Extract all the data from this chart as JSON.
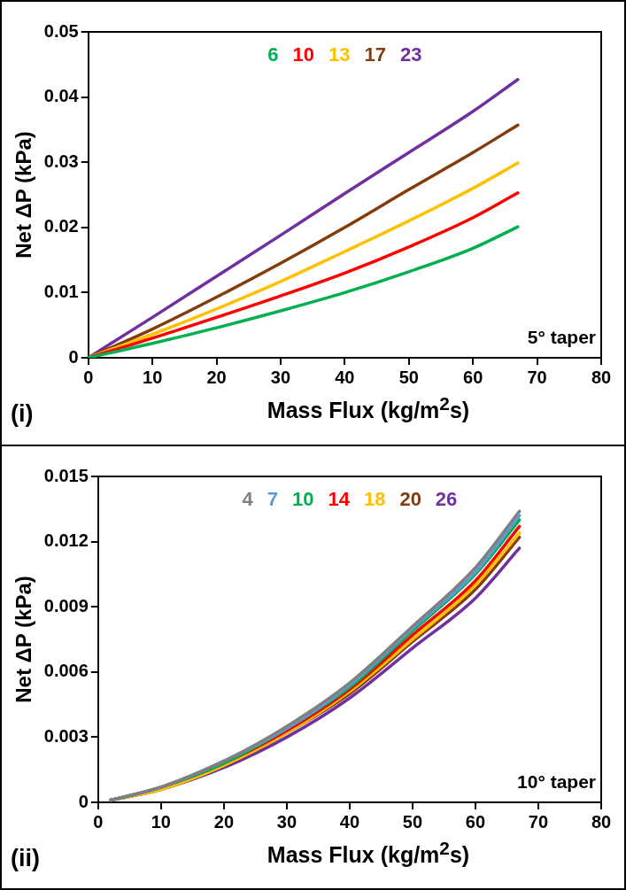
{
  "chart_data": [
    {
      "type": "line",
      "xlabel": "Mass Flux (kg/m$^{2}$s)",
      "ylabel": "Net ΔP (kPa)",
      "annotations": [
        "(i)",
        "5° taper"
      ],
      "xlim": [
        0,
        80
      ],
      "xticks": [
        0,
        10,
        20,
        30,
        40,
        50,
        60,
        70,
        80
      ],
      "ylim": [
        0,
        0.05
      ],
      "yticks": [
        0,
        0.01,
        0.02,
        0.03,
        0.04,
        0.05
      ],
      "grid": false,
      "legend": "top",
      "marker": "none",
      "line_style": "solid",
      "x": [
        0,
        10,
        20,
        30,
        40,
        50,
        60,
        67
      ],
      "series": [
        {
          "name": "6",
          "color": "#00b050",
          "values": [
            0,
            0.0022,
            0.0046,
            0.0072,
            0.01,
            0.0132,
            0.0168,
            0.0201
          ]
        },
        {
          "name": "10",
          "color": "#ff0000",
          "values": [
            0,
            0.003,
            0.0062,
            0.0095,
            0.013,
            0.017,
            0.0215,
            0.0253
          ]
        },
        {
          "name": "13",
          "color": "#ffc000",
          "values": [
            0,
            0.0036,
            0.0075,
            0.0117,
            0.0163,
            0.021,
            0.026,
            0.0299
          ]
        },
        {
          "name": "17",
          "color": "#843c0c",
          "values": [
            0,
            0.0044,
            0.0093,
            0.0145,
            0.02,
            0.0258,
            0.0315,
            0.0357
          ]
        },
        {
          "name": "23",
          "color": "#7030a0",
          "values": [
            0,
            0.0062,
            0.0125,
            0.0188,
            0.0252,
            0.0315,
            0.0378,
            0.0427
          ]
        }
      ]
    },
    {
      "type": "line",
      "xlabel": "Mass Flux (kg/m$^{2}$s)",
      "ylabel": "Net ΔP (kPa)",
      "annotations": [
        "(ii)",
        "10° taper"
      ],
      "xlim": [
        0,
        80
      ],
      "xticks": [
        0,
        10,
        20,
        30,
        40,
        50,
        60,
        70,
        80
      ],
      "ylim": [
        0,
        0.015
      ],
      "yticks": [
        0,
        0.003,
        0.006,
        0.009,
        0.012,
        0.015
      ],
      "grid": false,
      "legend": "top",
      "marker": "none",
      "line_style": "solid",
      "x": [
        2,
        10,
        20,
        30,
        40,
        50,
        60,
        67
      ],
      "series": [
        {
          "name": "4",
          "color": "#808080",
          "values": [
            0.0001,
            0.0007,
            0.0019,
            0.0035,
            0.0055,
            0.0081,
            0.0108,
            0.0134
          ]
        },
        {
          "name": "7",
          "color": "#5b9bd5",
          "values": [
            0.0001,
            0.0007,
            0.0019,
            0.0034,
            0.0054,
            0.008,
            0.0106,
            0.0132
          ]
        },
        {
          "name": "10",
          "color": "#00b050",
          "values": [
            0.0001,
            0.0007,
            0.0018,
            0.0034,
            0.0053,
            0.0079,
            0.0105,
            0.013
          ]
        },
        {
          "name": "14",
          "color": "#ff0000",
          "values": [
            0.0001,
            0.0007,
            0.0018,
            0.0033,
            0.0052,
            0.0077,
            0.0102,
            0.0127
          ]
        },
        {
          "name": "18",
          "color": "#ffc000",
          "values": [
            0.0001,
            0.0006,
            0.0017,
            0.0032,
            0.0051,
            0.0075,
            0.01,
            0.0124
          ]
        },
        {
          "name": "20",
          "color": "#843c0c",
          "values": [
            0.0001,
            0.0006,
            0.0017,
            0.0032,
            0.005,
            0.0074,
            0.0098,
            0.0122
          ]
        },
        {
          "name": "26",
          "color": "#7030a0",
          "values": [
            0.0001,
            0.0006,
            0.0016,
            0.003,
            0.0048,
            0.0071,
            0.0094,
            0.0117
          ]
        }
      ]
    }
  ]
}
